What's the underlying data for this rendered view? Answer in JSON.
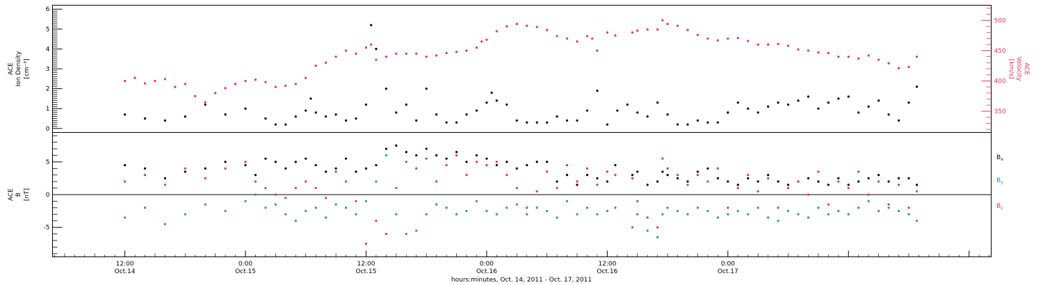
{
  "chart_data": [
    {
      "type": "scatter",
      "panel": "top",
      "ylabel_left": [
        "ACE",
        "Ion Density",
        "[cm⁻³]"
      ],
      "ylabel_right": [
        "ACE",
        "Velocity",
        "[km/s]"
      ],
      "ylim_left": [
        -0.2,
        6.2
      ],
      "yticks_left": [
        "0",
        "1",
        "2",
        "3",
        "4",
        "5",
        "6"
      ],
      "ylim_right": [
        315,
        525
      ],
      "yticks_right": [
        "350",
        "400",
        "450",
        "500"
      ],
      "colors": {
        "density": "#000000",
        "velocity": "#e8305a"
      },
      "series": [
        {
          "name": "Ion Density",
          "axis": "left",
          "color": "#000000",
          "x": [
            0,
            2,
            4,
            6,
            8,
            10,
            12,
            14,
            15,
            16,
            17,
            18,
            18.5,
            19,
            20,
            21,
            22,
            23,
            24,
            24.5,
            25,
            26,
            27,
            28,
            29,
            30,
            31,
            32,
            33,
            34,
            35,
            36,
            36.5,
            37,
            38,
            39,
            40,
            41,
            42,
            43,
            44,
            45,
            46,
            47,
            48,
            49,
            50,
            51,
            52,
            53,
            54,
            55,
            56,
            57,
            58,
            59,
            60,
            61,
            62,
            63,
            64,
            65,
            66,
            67,
            68,
            69,
            70,
            71,
            72,
            73,
            74,
            75,
            76,
            77,
            78,
            78.8
          ],
          "values": [
            0.7,
            0.5,
            0.4,
            0.6,
            1.2,
            0.7,
            1.0,
            0.5,
            0.2,
            0.2,
            0.6,
            0.9,
            1.5,
            0.8,
            0.6,
            0.7,
            0.4,
            0.5,
            1.2,
            5.2,
            4.0,
            2.0,
            0.8,
            1.2,
            0.4,
            2.0,
            0.7,
            0.3,
            0.3,
            0.7,
            0.9,
            1.3,
            1.8,
            1.4,
            1.2,
            0.4,
            0.3,
            0.3,
            0.3,
            0.6,
            0.4,
            0.4,
            0.9,
            1.9,
            0.2,
            0.9,
            1.2,
            0.8,
            0.6,
            1.3,
            0.7,
            0.2,
            0.2,
            0.4,
            0.3,
            0.3,
            0.8,
            1.3,
            1.0,
            0.8,
            1.1,
            1.3,
            1.2,
            1.4,
            1.6,
            1.0,
            1.3,
            1.5,
            1.6,
            0.8,
            1.1,
            1.4,
            0.7,
            0.4,
            1.3,
            2.1
          ]
        },
        {
          "name": "Velocity",
          "axis": "right",
          "color": "#e8305a",
          "x": [
            0,
            1,
            2,
            3,
            4,
            5,
            6,
            7,
            8,
            9,
            10,
            11,
            12,
            13,
            14,
            15,
            16,
            17,
            18,
            19,
            20,
            21,
            22,
            23,
            24,
            24.5,
            25,
            26,
            27,
            28,
            29,
            30,
            31,
            32,
            33,
            34,
            35,
            35.5,
            36,
            37,
            38,
            39,
            40,
            41,
            42,
            43,
            44,
            45,
            46,
            46.5,
            47,
            48,
            48.8,
            50.5,
            51,
            52,
            53,
            53.5,
            54,
            55,
            56,
            57,
            58,
            59,
            60,
            61,
            62,
            63,
            64,
            65,
            66,
            67,
            68,
            69,
            70,
            71,
            72,
            73,
            74,
            75,
            76,
            77,
            78,
            78.8
          ],
          "values": [
            400,
            405,
            396,
            400,
            403,
            390,
            395,
            375,
            365,
            380,
            388,
            395,
            400,
            402,
            398,
            390,
            392,
            395,
            405,
            425,
            430,
            440,
            450,
            445,
            455,
            460,
            435,
            440,
            445,
            445,
            445,
            440,
            442,
            446,
            448,
            450,
            455,
            465,
            468,
            482,
            490,
            494,
            491,
            489,
            484,
            474,
            470,
            465,
            474,
            470,
            450,
            480,
            475,
            480,
            483,
            485,
            485,
            500,
            494,
            491,
            484,
            476,
            470,
            467,
            470,
            471,
            466,
            460,
            460,
            461,
            458,
            452,
            450,
            447,
            446,
            440,
            440,
            437,
            442,
            435,
            429,
            421,
            423,
            440
          ]
        }
      ]
    },
    {
      "type": "scatter",
      "panel": "bottom",
      "ylabel_left": [
        "ACE",
        "B",
        "[nT]"
      ],
      "ylim": [
        -9.5,
        9.5
      ],
      "yticks": [
        "-5",
        "0",
        "5"
      ],
      "zero_line": true,
      "legend": [
        "B",
        "B",
        "B"
      ],
      "legend_subs": [
        "x",
        "y",
        "z"
      ],
      "legend_position": "right",
      "colors": {
        "Bx": "#000000",
        "By": "#2a87d6",
        "Bz": "#e8305a"
      },
      "series": [
        {
          "name": "Bx",
          "color": "#000000",
          "x": [
            0,
            2,
            4,
            6,
            8,
            10,
            12,
            13,
            14,
            15,
            16,
            17,
            18,
            19,
            20,
            21,
            22,
            23,
            24,
            25,
            26,
            27,
            28,
            29,
            30,
            31,
            32,
            33,
            34,
            35,
            36,
            37,
            38,
            39,
            40,
            41,
            42,
            43,
            44,
            45,
            46,
            47,
            48,
            48.8,
            50.5,
            51,
            52,
            53,
            53.5,
            54,
            55,
            56,
            57,
            58,
            59,
            60,
            61,
            62,
            63,
            64,
            65,
            66,
            67,
            68,
            69,
            70,
            71,
            72,
            73,
            74,
            75,
            76,
            77,
            78,
            78.8
          ],
          "values": [
            4.5,
            4.0,
            2.5,
            3.5,
            4.0,
            5.0,
            4.5,
            3.0,
            5.5,
            5.0,
            4.0,
            5.0,
            5.5,
            4.5,
            3.5,
            4.0,
            5.5,
            3.5,
            4.0,
            4.5,
            7.0,
            7.5,
            6.5,
            6.0,
            7.0,
            6.0,
            5.5,
            6.5,
            5.0,
            6.0,
            5.5,
            4.5,
            5.0,
            4.0,
            4.5,
            5.0,
            5.0,
            2.0,
            3.0,
            1.5,
            3.0,
            2.5,
            2.0,
            4.5,
            3.0,
            3.5,
            1.5,
            2.0,
            3.5,
            3.0,
            2.5,
            2.0,
            3.5,
            4.0,
            2.5,
            2.0,
            1.5,
            2.5,
            2.0,
            3.0,
            2.0,
            1.5,
            2.0,
            2.5,
            2.0,
            1.5,
            2.5,
            1.5,
            2.0,
            2.5,
            3.0,
            2.0,
            2.5,
            2.5,
            1.5
          ]
        },
        {
          "name": "By",
          "color": "#2a87d6",
          "x": [
            0,
            2,
            4,
            6,
            8,
            10,
            12,
            13,
            14,
            15,
            16,
            17,
            18,
            19,
            20,
            21,
            22,
            23,
            24,
            25,
            26,
            27,
            28,
            29,
            30,
            31,
            32,
            33,
            34,
            35,
            36,
            37,
            38,
            39,
            40,
            41,
            42,
            43,
            44,
            45,
            46,
            47,
            48,
            48.8,
            50.5,
            51,
            52,
            53,
            53.5,
            54,
            55,
            56,
            57,
            58,
            59,
            60,
            61,
            62,
            63,
            64,
            65,
            66,
            67,
            68,
            69,
            70,
            71,
            72,
            73,
            74,
            75,
            76,
            77,
            78,
            78.8
          ],
          "values": [
            -3.5,
            -2.0,
            -4.5,
            -3.0,
            -1.5,
            -2.5,
            -1.0,
            0.0,
            -2.0,
            -1.5,
            -3.0,
            -4.0,
            -2.5,
            -2.0,
            -3.5,
            -1.5,
            -2.0,
            -3.0,
            -1.0,
            2.0,
            6.0,
            -3.0,
            -6.0,
            -5.5,
            -3.0,
            -1.5,
            -2.0,
            -3.0,
            -2.5,
            -1.0,
            -2.5,
            -3.0,
            -2.0,
            -1.5,
            -3.0,
            -2.0,
            -2.5,
            -3.5,
            -1.0,
            -3.0,
            -2.0,
            -3.0,
            -2.5,
            -2.0,
            -5.0,
            -3.0,
            -5.5,
            -6.5,
            -3.0,
            -2.0,
            -2.5,
            -3.0,
            -2.0,
            -2.5,
            -3.5,
            -3.0,
            -2.5,
            -3.0,
            -2.0,
            -3.5,
            -4.0,
            -2.5,
            -3.0,
            -3.5,
            -2.0,
            -3.0,
            -2.5,
            -3.0,
            -2.0,
            -1.0,
            -2.5,
            -2.0,
            -2.5,
            -3.0,
            -4.0
          ]
        },
        {
          "name": "Bz",
          "color": "#e8305a",
          "x": [
            0,
            2,
            4,
            6,
            8,
            10,
            12,
            13,
            14,
            15,
            16,
            17,
            18,
            19,
            20,
            21,
            22,
            23,
            24,
            25,
            26,
            27,
            28,
            29,
            30,
            31,
            32,
            33,
            34,
            35,
            36,
            37,
            38,
            39,
            40,
            41,
            42,
            43,
            44,
            45,
            46,
            47,
            48,
            48.8,
            50.5,
            51,
            52,
            53,
            53.5,
            54,
            55,
            56,
            57,
            58,
            59,
            60,
            61,
            62,
            63,
            64,
            65,
            66,
            67,
            68,
            69,
            70,
            71,
            72,
            73,
            74,
            75,
            76,
            77,
            78,
            78.8
          ],
          "values": [
            2.0,
            3.0,
            1.5,
            4.0,
            2.5,
            4.0,
            5.0,
            2.0,
            1.0,
            0.0,
            -0.5,
            1.0,
            2.0,
            1.0,
            -0.5,
            3.5,
            2.0,
            -1.0,
            -7.5,
            -4.0,
            -6.0,
            1.0,
            5.0,
            4.0,
            5.5,
            2.0,
            4.5,
            6.0,
            3.0,
            5.0,
            4.5,
            5.0,
            3.0,
            1.0,
            -2.0,
            0.5,
            3.5,
            1.0,
            4.5,
            2.0,
            4.0,
            1.5,
            3.5,
            3.0,
            2.5,
            -1.0,
            -3.5,
            -5.0,
            5.5,
            4.0,
            3.0,
            1.5,
            3.0,
            2.0,
            4.0,
            -2.0,
            1.0,
            3.0,
            0.5,
            2.5,
            -2.0,
            1.0,
            2.0,
            0.0,
            3.5,
            -1.5,
            2.0,
            1.0,
            3.5,
            0.0,
            2.0,
            -1.5,
            1.5,
            -2.0,
            0.5
          ]
        }
      ]
    }
  ],
  "time_axis": {
    "xlim_hours": [
      -7.2,
      86.2
    ],
    "ticks": [
      {
        "x": 0,
        "time": "12:00",
        "date": "Oct.14"
      },
      {
        "x": 12,
        "time": "0:00",
        "date": "Oct.15"
      },
      {
        "x": 24,
        "time": "12:00",
        "date": "Oct.15"
      },
      {
        "x": 36,
        "time": "0:00",
        "date": "Oct.16"
      },
      {
        "x": 48,
        "time": "12:00",
        "date": "Oct.16"
      },
      {
        "x": 60,
        "time": "0:00",
        "date": "Oct.17"
      }
    ],
    "xlabel": "hours:minutes, Oct. 14, 2011 - Oct. 17, 2011"
  }
}
